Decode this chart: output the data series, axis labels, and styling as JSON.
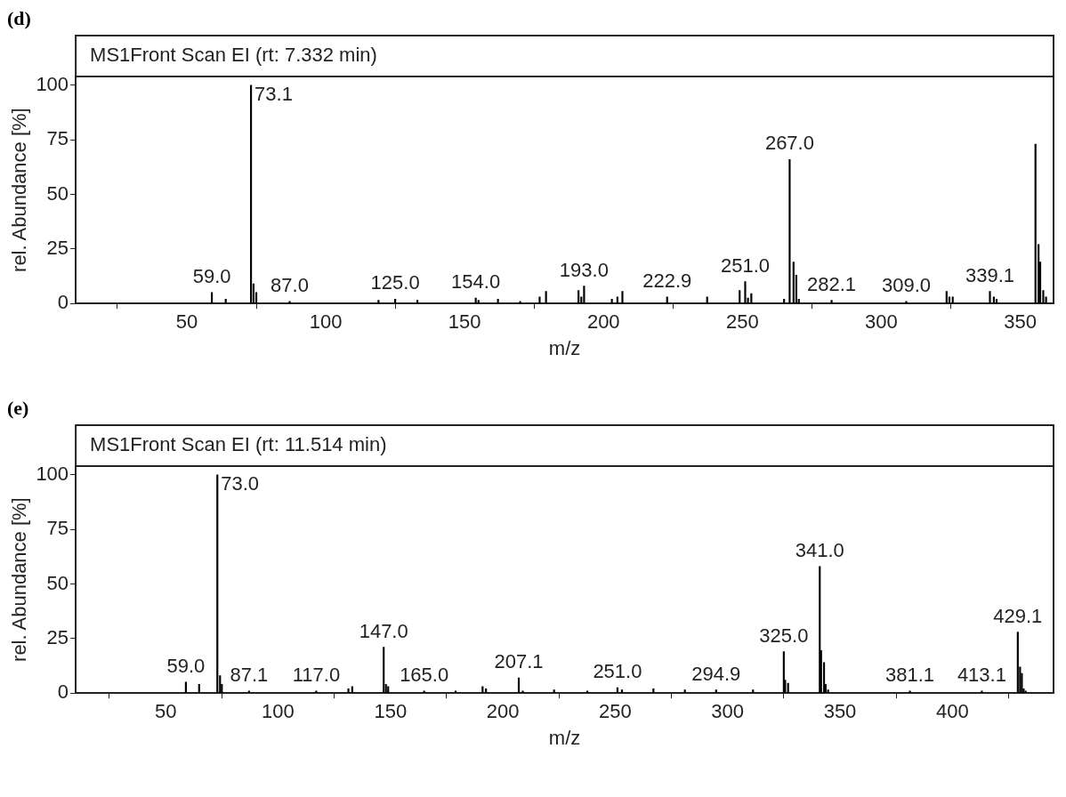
{
  "chart_data": [
    {
      "type": "bar",
      "title": "(d)",
      "subtitle": "MS1Front Scan EI (rt: 7.332 min)",
      "xlabel": "m/z",
      "ylabel": "rel. Abundance [%]",
      "color": "#000000",
      "x": [
        59.0,
        64,
        73.1,
        74,
        75,
        87.0,
        119,
        125.0,
        133,
        154.0,
        155,
        162,
        170,
        177,
        179.3,
        191,
        192,
        193.0,
        203,
        205,
        206.8,
        222.9,
        237.3,
        249,
        251.0,
        252,
        253.2,
        265,
        267.0,
        268.4,
        269.4,
        270.3,
        282.1,
        309.0,
        323.5,
        324.5,
        325.7,
        339.1,
        340.5,
        341.5,
        355.5,
        356.6,
        357.2,
        358.3,
        359.3
      ],
      "values": [
        5,
        2,
        100,
        9,
        5,
        1,
        1.5,
        2,
        1.5,
        2.5,
        1.5,
        2,
        1,
        3,
        5.5,
        6,
        3,
        8,
        2,
        3,
        5.5,
        3,
        3,
        6,
        10,
        2.5,
        4.5,
        2,
        66,
        19,
        13,
        2,
        1.5,
        1,
        5.5,
        3,
        3,
        5.5,
        3,
        2,
        73,
        27,
        19,
        6,
        3
      ],
      "xlim": [
        10,
        362
      ],
      "xticks": [
        50,
        100,
        150,
        200,
        250,
        300,
        350
      ],
      "ylim": [
        0,
        104
      ],
      "yticks": [
        0,
        25,
        50,
        75,
        100
      ],
      "annotations": [
        {
          "text": "59.0",
          "x": 59.0,
          "y": 5
        },
        {
          "text": "73.1",
          "x": 73.1,
          "y": 100
        },
        {
          "text": "87.0",
          "x": 87.0,
          "y": 1
        },
        {
          "text": "125.0",
          "x": 125.0,
          "y": 2
        },
        {
          "text": "154.0",
          "x": 154.0,
          "y": 2.5
        },
        {
          "text": "193.0",
          "x": 193.0,
          "y": 8
        },
        {
          "text": "222.9",
          "x": 222.9,
          "y": 3
        },
        {
          "text": "251.0",
          "x": 251.0,
          "y": 10
        },
        {
          "text": "267.0",
          "x": 267.0,
          "y": 66
        },
        {
          "text": "282.1",
          "x": 282.1,
          "y": 1.5
        },
        {
          "text": "309.0",
          "x": 309.0,
          "y": 1
        },
        {
          "text": "339.1",
          "x": 339.1,
          "y": 5.5
        }
      ]
    },
    {
      "type": "bar",
      "title": "(e)",
      "subtitle": "MS1Front Scan EI (rt: 11.514 min)",
      "xlabel": "m/z",
      "ylabel": "rel. Abundance [%]",
      "color": "#000000",
      "x": [
        59.0,
        64.9,
        73.0,
        74.2,
        75,
        87.1,
        117.0,
        131.3,
        133,
        147.0,
        148,
        149,
        165.0,
        179,
        191,
        192.5,
        207.1,
        208.9,
        222.8,
        237.6,
        251.0,
        253,
        267,
        281,
        294.9,
        311.3,
        325.0,
        325.6,
        326.9,
        341.0,
        341.6,
        342.9,
        343.6,
        344.7,
        381.1,
        413.1,
        429.1,
        430.1,
        430.9,
        431.7,
        432.6
      ],
      "values": [
        5,
        4,
        100,
        8,
        4,
        1,
        1,
        2,
        3,
        21,
        4,
        3,
        1,
        1,
        3,
        2,
        7,
        1,
        1.5,
        1,
        2.5,
        1.5,
        2,
        1.5,
        1.5,
        1.5,
        19,
        6,
        4.5,
        58,
        19.5,
        14,
        4,
        1.5,
        1,
        1,
        28,
        12,
        9,
        2,
        1
      ],
      "xlim": [
        10,
        445
      ],
      "xticks": [
        50,
        100,
        150,
        200,
        250,
        300,
        350,
        400
      ],
      "ylim": [
        0,
        104
      ],
      "yticks": [
        0,
        25,
        50,
        75,
        100
      ],
      "annotations": [
        {
          "text": "59.0",
          "x": 59.0,
          "y": 5
        },
        {
          "text": "73.0",
          "x": 73.0,
          "y": 100
        },
        {
          "text": "87.1",
          "x": 87.1,
          "y": 1
        },
        {
          "text": "117.0",
          "x": 117.0,
          "y": 1
        },
        {
          "text": "147.0",
          "x": 147.0,
          "y": 21
        },
        {
          "text": "165.0",
          "x": 165.0,
          "y": 1
        },
        {
          "text": "207.1",
          "x": 207.1,
          "y": 7
        },
        {
          "text": "251.0",
          "x": 251.0,
          "y": 2.5
        },
        {
          "text": "294.9",
          "x": 294.9,
          "y": 1.5
        },
        {
          "text": "325.0",
          "x": 325.0,
          "y": 19
        },
        {
          "text": "341.0",
          "x": 341.0,
          "y": 58
        },
        {
          "text": "381.1",
          "x": 381.1,
          "y": 1
        },
        {
          "text": "413.1",
          "x": 413.1,
          "y": 1
        },
        {
          "text": "429.1",
          "x": 429.1,
          "y": 28
        }
      ]
    }
  ]
}
